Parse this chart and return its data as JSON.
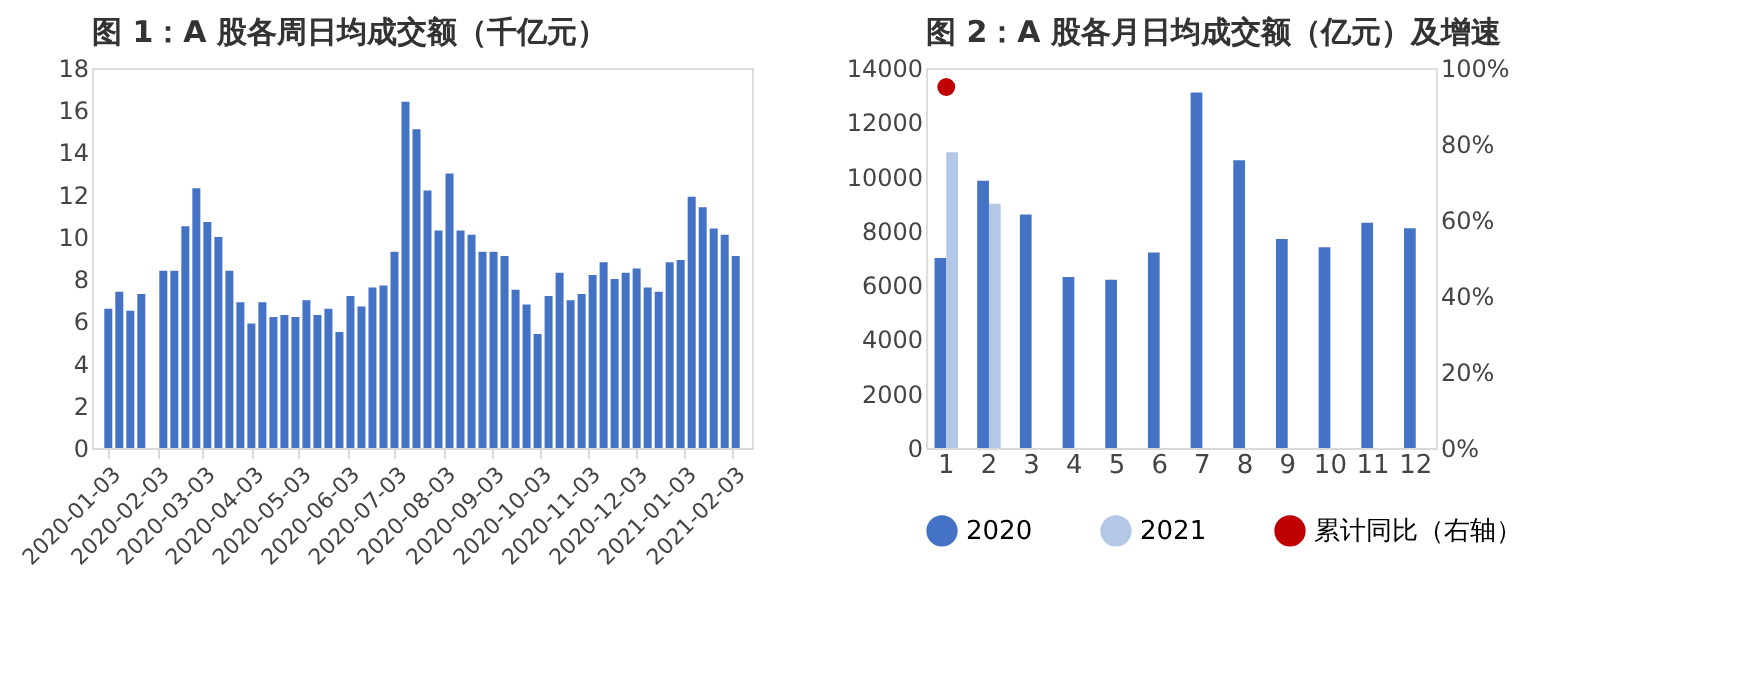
{
  "chart_data": [
    {
      "type": "bar",
      "title": "图 1：A 股各周日均成交额（千亿元）",
      "x": [
        "2020-01-03",
        "2020-01-10",
        "2020-01-17",
        "2020-01-24",
        "2020-01-31",
        "2020-02-07",
        "2020-02-14",
        "2020-02-21",
        "2020-02-28",
        "2020-03-06",
        "2020-03-13",
        "2020-03-20",
        "2020-03-27",
        "2020-04-03",
        "2020-04-10",
        "2020-04-17",
        "2020-04-24",
        "2020-05-01",
        "2020-05-08",
        "2020-05-15",
        "2020-05-22",
        "2020-05-29",
        "2020-06-05",
        "2020-06-12",
        "2020-06-19",
        "2020-06-26",
        "2020-07-03",
        "2020-07-10",
        "2020-07-17",
        "2020-07-24",
        "2020-07-31",
        "2020-08-07",
        "2020-08-14",
        "2020-08-21",
        "2020-08-28",
        "2020-09-04",
        "2020-09-11",
        "2020-09-18",
        "2020-09-25",
        "2020-10-02",
        "2020-10-09",
        "2020-10-16",
        "2020-10-23",
        "2020-10-30",
        "2020-11-06",
        "2020-11-13",
        "2020-11-20",
        "2020-11-27",
        "2020-12-04",
        "2020-12-11",
        "2020-12-18",
        "2020-12-25",
        "2021-01-01",
        "2021-01-08",
        "2021-01-15",
        "2021-01-22",
        "2021-01-29",
        "2021-02-05"
      ],
      "series": [
        {
          "color": "#4472c4",
          "values": [
            6.6,
            7.4,
            6.5,
            7.3,
            null,
            8.4,
            8.4,
            10.5,
            12.3,
            10.7,
            10.0,
            8.4,
            6.9,
            5.9,
            6.9,
            6.2,
            6.3,
            6.2,
            7.0,
            6.3,
            6.6,
            5.5,
            7.2,
            6.7,
            7.6,
            7.7,
            9.3,
            16.4,
            15.1,
            12.2,
            10.3,
            13.0,
            10.3,
            10.1,
            9.3,
            9.3,
            9.1,
            7.5,
            6.8,
            5.4,
            7.2,
            8.3,
            7.0,
            7.3,
            8.2,
            8.8,
            8.0,
            8.3,
            8.5,
            7.6,
            7.4,
            8.8,
            8.9,
            11.9,
            11.4,
            10.4,
            10.1,
            9.1
          ]
        }
      ],
      "xlim": [
        "2019-12-30",
        "2021-02-09"
      ],
      "xticks": [
        "2020-01-03",
        "2020-02-03",
        "2020-03-03",
        "2020-04-03",
        "2020-05-03",
        "2020-06-03",
        "2020-07-03",
        "2020-08-03",
        "2020-09-03",
        "2020-10-03",
        "2020-11-03",
        "2020-12-03",
        "2021-01-03",
        "2021-02-03"
      ],
      "ylim": [
        0,
        18
      ],
      "yticks": [
        0,
        2,
        4,
        6,
        8,
        10,
        12,
        14,
        16,
        18
      ],
      "grid": false,
      "legend": false
    },
    {
      "type": "bar",
      "title": "图 2：A 股各月日均成交额（亿元）及增速",
      "categories": [
        "1",
        "2",
        "3",
        "4",
        "5",
        "6",
        "7",
        "8",
        "9",
        "10",
        "11",
        "12"
      ],
      "series": [
        {
          "name": "2020",
          "color": "#4472c4",
          "values": [
            7000,
            9850,
            8600,
            6300,
            6200,
            7200,
            13100,
            10600,
            7700,
            7400,
            8300,
            8100
          ]
        },
        {
          "name": "2021",
          "color": "#b4c7e7",
          "values": [
            10900,
            9000,
            null,
            null,
            null,
            null,
            null,
            null,
            null,
            null,
            null,
            null
          ]
        },
        {
          "name": "累计同比（右轴）",
          "type": "line",
          "axis": "y2",
          "marker": "circle",
          "color": "#c00000",
          "values": [
            95,
            null,
            null,
            null,
            null,
            null,
            null,
            null,
            null,
            null,
            null,
            null
          ]
        }
      ],
      "ylim": [
        0,
        14000
      ],
      "yticks": [
        0,
        2000,
        4000,
        6000,
        8000,
        10000,
        12000,
        14000
      ],
      "y2lim": [
        0,
        100
      ],
      "y2ticks": [
        {
          "value": 0,
          "label": "0%"
        },
        {
          "value": 20,
          "label": "20%"
        },
        {
          "value": 40,
          "label": "40%"
        },
        {
          "value": 60,
          "label": "60%"
        },
        {
          "value": 80,
          "label": "80%"
        },
        {
          "value": 100,
          "label": "100%"
        }
      ],
      "grid": false,
      "legend": "bottom"
    }
  ]
}
